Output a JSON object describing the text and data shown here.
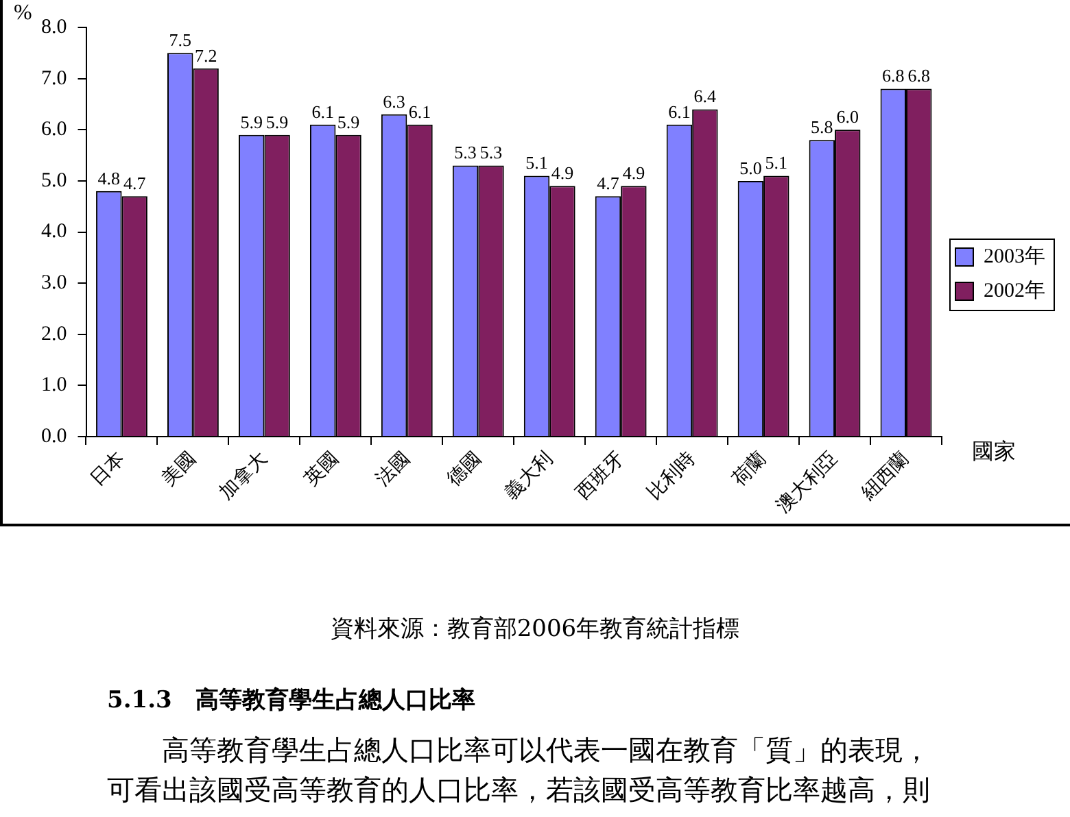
{
  "chart_data": {
    "type": "bar",
    "ylabel": "%",
    "xlabel": "國家",
    "categories": [
      "日本",
      "美國",
      "加拿大",
      "英國",
      "法國",
      "德國",
      "義大利",
      "西班牙",
      "比利時",
      "荷蘭",
      "澳大利亞",
      "紐西蘭"
    ],
    "series": [
      {
        "name": "2003年",
        "color": "#8080ff",
        "values": [
          4.8,
          7.5,
          5.9,
          6.1,
          6.3,
          5.3,
          5.1,
          4.7,
          6.1,
          5.0,
          5.8,
          6.8
        ],
        "value_labels": [
          "4.8",
          "7.5",
          "5.9",
          "6.1",
          "6.3",
          "5.3",
          "5.1",
          "4.7",
          "6.1",
          "5.0",
          "5.8",
          "6.8"
        ]
      },
      {
        "name": "2002年",
        "color": "#801f5f",
        "values": [
          4.7,
          7.2,
          5.9,
          5.9,
          6.1,
          5.3,
          4.9,
          4.9,
          6.4,
          5.1,
          6.0,
          6.8
        ],
        "value_labels": [
          "4.7",
          "7.2",
          "5.9",
          "5.9",
          "6.1",
          "5.3",
          "4.9",
          "4.9",
          "6.4",
          "5.1",
          "6.0",
          "6.8"
        ]
      }
    ],
    "ylim": [
      0,
      8
    ],
    "yticks": [
      {
        "value": 0,
        "label": "0.0"
      },
      {
        "value": 1,
        "label": "1.0"
      },
      {
        "value": 2,
        "label": "2.0"
      },
      {
        "value": 3,
        "label": "3.0"
      },
      {
        "value": 4,
        "label": "4.0"
      },
      {
        "value": 5,
        "label": "5.0"
      },
      {
        "value": 6,
        "label": "6.0"
      },
      {
        "value": 7,
        "label": "7.0"
      },
      {
        "value": 8,
        "label": "8.0"
      }
    ],
    "grid": false,
    "legend": "right",
    "annotations": [
      "資料來源：教育部2006年教育統計指標",
      "5.1.3　高等教育學生占總人口比率",
      "高等教育學生占總人口比率可以代表一國在教育「質」的表現，可看出該國受高等教育的人口比率，若該國受高等教育比率越高，則"
    ]
  }
}
